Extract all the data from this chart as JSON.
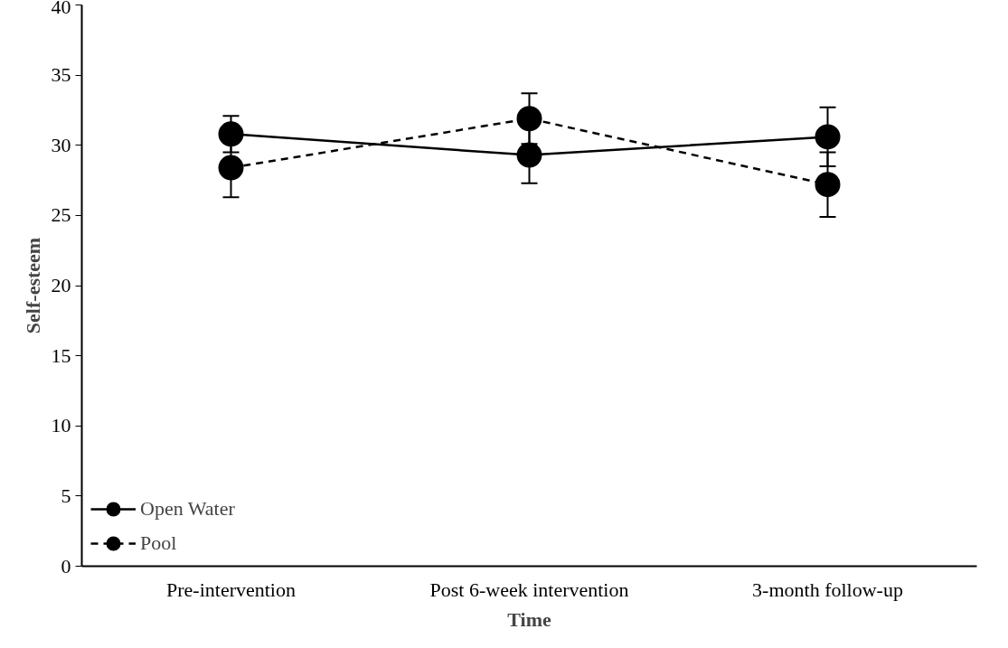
{
  "chart_data": {
    "type": "line",
    "xlabel": "Time",
    "ylabel": "Self-esteem",
    "categories": [
      "Pre-intervention",
      "Post 6-week intervention",
      "3-month follow-up"
    ],
    "ylim": [
      0,
      40
    ],
    "yticks": [
      0,
      5,
      10,
      15,
      20,
      25,
      30,
      35,
      40
    ],
    "grid": false,
    "legend": "bottom left",
    "marker": "circle",
    "series": [
      {
        "name": "Open Water",
        "color": "#000000",
        "line_style": "solid",
        "values": [
          30.8,
          29.3,
          30.6
        ],
        "errors": [
          1.3,
          2.0,
          2.1
        ]
      },
      {
        "name": "Pool",
        "color": "#000000",
        "line_style": "dashed",
        "values": [
          28.4,
          31.9,
          27.2
        ],
        "errors": [
          2.1,
          1.8,
          2.3
        ]
      }
    ]
  }
}
